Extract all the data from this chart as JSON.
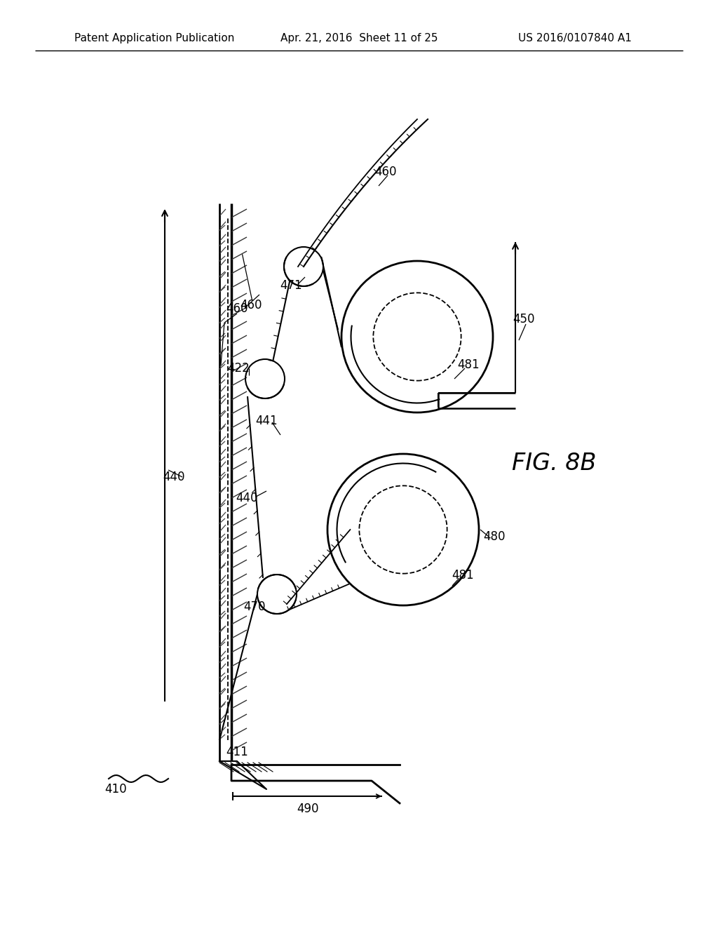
{
  "header_left": "Patent Application Publication",
  "header_mid": "Apr. 21, 2016  Sheet 11 of 25",
  "header_right": "US 2016/0107840 A1",
  "fig_label": "FIG. 8B",
  "bg_color": "#ffffff"
}
